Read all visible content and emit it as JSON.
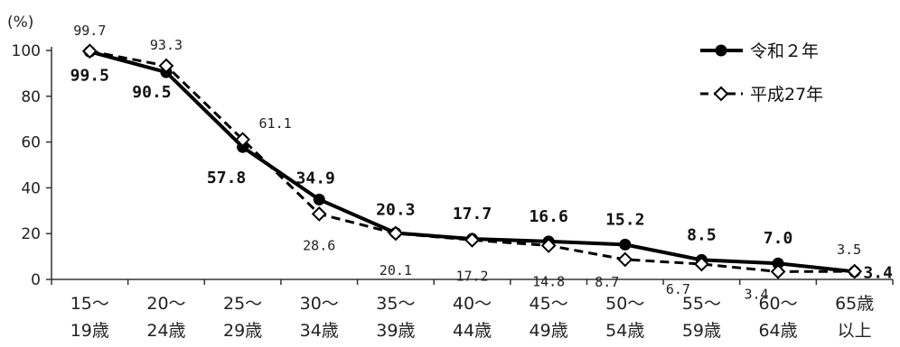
{
  "chart_data": {
    "type": "line",
    "unit_label": "(%)",
    "ylim": [
      0,
      100
    ],
    "y_ticks": [
      "0",
      "20",
      "40",
      "60",
      "80",
      "100"
    ],
    "categories": [
      [
        "15～",
        "19歳"
      ],
      [
        "20～",
        "24歳"
      ],
      [
        "25～",
        "29歳"
      ],
      [
        "30～",
        "34歳"
      ],
      [
        "35～",
        "39歳"
      ],
      [
        "40～",
        "44歳"
      ],
      [
        "45～",
        "49歳"
      ],
      [
        "50～",
        "54歳"
      ],
      [
        "55～",
        "59歳"
      ],
      [
        "60～",
        "64歳"
      ],
      [
        "65歳",
        "以上"
      ]
    ],
    "series": [
      {
        "name": "令和２年",
        "style": "solid",
        "marker": "filled-circle",
        "color": "#000000",
        "values": [
          99.5,
          90.5,
          57.8,
          34.9,
          20.3,
          17.7,
          16.6,
          15.2,
          8.5,
          7.0,
          3.4
        ],
        "labels": [
          "99.5",
          "90.5",
          "57.8",
          "34.9",
          "20.3",
          "17.7",
          "16.6",
          "15.2",
          "8.5",
          "7.0",
          "3.4"
        ]
      },
      {
        "name": "平成27年",
        "style": "dashed",
        "marker": "open-diamond",
        "color": "#000000",
        "values": [
          99.7,
          93.3,
          61.1,
          28.6,
          20.1,
          17.2,
          14.8,
          8.7,
          6.7,
          3.4,
          3.5
        ],
        "labels": [
          "99.7",
          "93.3",
          "61.1",
          "28.6",
          "20.1",
          "17.2",
          "14.8",
          "8.7",
          "6.7",
          "3.4",
          "3.5"
        ]
      }
    ],
    "grid": false,
    "legend_position": "top-right"
  }
}
